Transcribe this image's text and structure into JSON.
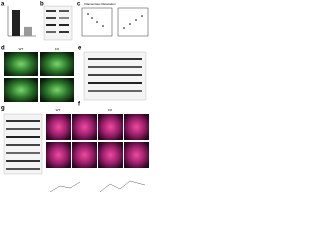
{
  "panels": [
    {
      "letter": "a",
      "bars": [
        1.0,
        0.35
      ]
    },
    {
      "letter": "b"
    },
    {
      "letter": "c",
      "title": "Filamentous Relocation"
    },
    {
      "letter": "d",
      "labels": [
        "WT",
        "KO"
      ]
    },
    {
      "letter": "e"
    },
    {
      "letter": "f"
    },
    {
      "letter": "g",
      "labels": [
        "WT",
        "KO"
      ]
    }
  ]
}
